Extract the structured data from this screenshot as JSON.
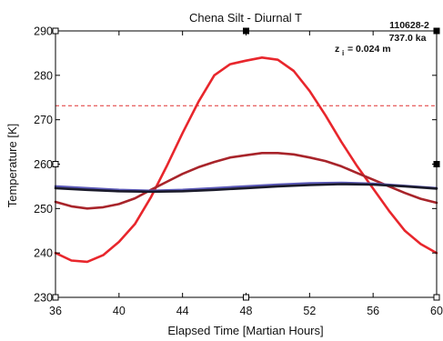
{
  "chart_data": {
    "type": "line",
    "title": "Chena Silt - Diurnal T",
    "xlabel": "Elapsed Time [Martian Hours]",
    "ylabel": "Temperature [K]",
    "xlim": [
      36,
      60
    ],
    "ylim": [
      230,
      290
    ],
    "xticks": [
      36,
      40,
      44,
      48,
      52,
      56,
      60
    ],
    "yticks": [
      230,
      240,
      250,
      260,
      270,
      280,
      290
    ],
    "grid": false,
    "annotations": [
      "110628-2",
      "737.0 ka",
      "z",
      "i",
      "= 0.024 m"
    ],
    "reference_line": {
      "y": 273.15,
      "color": "#e03030",
      "style": "dashed"
    },
    "series": [
      {
        "color": "#e8262c",
        "x": [
          36,
          37,
          38,
          39,
          40,
          41,
          42,
          43,
          44,
          45,
          46,
          47,
          48,
          49,
          50,
          51,
          52,
          53,
          54,
          55,
          56,
          57,
          58,
          59,
          60
        ],
        "y": [
          240,
          238.3,
          238,
          239.5,
          242.5,
          246.5,
          252.5,
          259.5,
          267,
          274,
          280,
          282.5,
          283.3,
          284,
          283.5,
          281,
          276.5,
          271,
          265,
          259.5,
          254.5,
          249.5,
          245,
          242,
          240
        ]
      },
      {
        "color": "#a8242a",
        "x": [
          36,
          37,
          38,
          39,
          40,
          41,
          42,
          43,
          44,
          45,
          46,
          47,
          48,
          49,
          50,
          51,
          52,
          53,
          54,
          55,
          56,
          57,
          58,
          59,
          60
        ],
        "y": [
          251.5,
          250.5,
          250,
          250.3,
          251,
          252.3,
          254.2,
          256,
          257.8,
          259.3,
          260.5,
          261.5,
          262,
          262.5,
          262.5,
          262.2,
          261.5,
          260.7,
          259.5,
          258,
          256.5,
          255,
          253.5,
          252.2,
          251.3
        ]
      },
      {
        "color": "#5c5ab8",
        "x": [
          36,
          38,
          40,
          42,
          44,
          46,
          48,
          50,
          52,
          54,
          56,
          58,
          60
        ],
        "y": [
          255,
          254.6,
          254.2,
          254,
          254.2,
          254.6,
          255,
          255.4,
          255.7,
          255.8,
          255.6,
          255.1,
          254.6
        ]
      },
      {
        "color": "#1a1a2a",
        "x": [
          36,
          38,
          40,
          42,
          44,
          46,
          48,
          50,
          52,
          54,
          56,
          58,
          60
        ],
        "y": [
          254.6,
          254.2,
          253.9,
          253.8,
          253.9,
          254.2,
          254.6,
          255,
          255.3,
          255.5,
          255.4,
          255,
          254.5
        ]
      }
    ],
    "colors": {
      "axes": "#000000",
      "marker": "#000000"
    }
  }
}
